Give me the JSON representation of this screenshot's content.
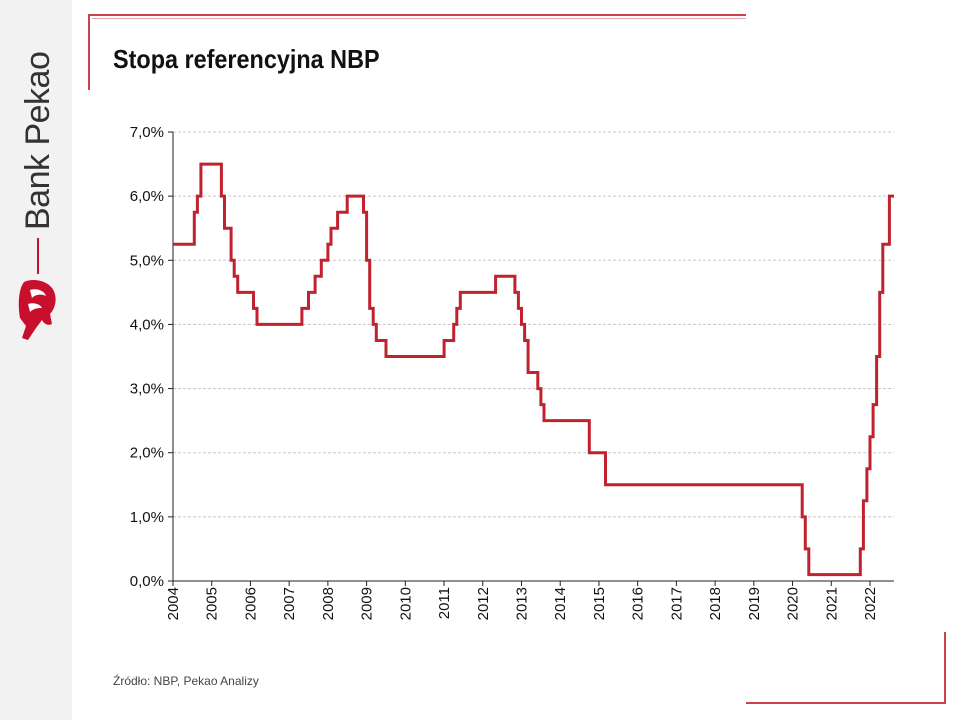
{
  "brand": {
    "name": "Bank Pekao",
    "accent": "#c8102e"
  },
  "title": "Stopa referencyjna NBP",
  "source": "Źródło: NBP, Pekao Analizy",
  "chart_data": {
    "type": "line",
    "step": true,
    "title": "Stopa referencyjna NBP",
    "xlabel": "",
    "ylabel": "",
    "xlim": [
      2004,
      2022.62
    ],
    "ylim": [
      0,
      7
    ],
    "grid": true,
    "legend": "none",
    "line_color": "#c0222e",
    "y_ticks": [
      0,
      1,
      2,
      3,
      4,
      5,
      6,
      7
    ],
    "y_tick_labels": [
      "0,0%",
      "1,0%",
      "2,0%",
      "3,0%",
      "4,0%",
      "5,0%",
      "6,0%",
      "7,0%"
    ],
    "x_ticks": [
      2004,
      2005,
      2006,
      2007,
      2008,
      2009,
      2010,
      2011,
      2012,
      2013,
      2014,
      2015,
      2016,
      2017,
      2018,
      2019,
      2020,
      2021,
      2022
    ],
    "x_tick_labels": [
      "2004",
      "2005",
      "2006",
      "2007",
      "2008",
      "2009",
      "2010",
      "2011",
      "2012",
      "2013",
      "2014",
      "2015",
      "2016",
      "2017",
      "2018",
      "2019",
      "2020",
      "2021",
      "2022"
    ],
    "series": [
      {
        "name": "Stopa referencyjna NBP",
        "x": [
          2004.0,
          2004.55,
          2004.63,
          2004.72,
          2005.25,
          2005.33,
          2005.5,
          2005.58,
          2005.67,
          2006.08,
          2006.17,
          2007.33,
          2007.5,
          2007.67,
          2007.83,
          2008.0,
          2008.08,
          2008.25,
          2008.5,
          2008.92,
          2009.0,
          2009.08,
          2009.17,
          2009.25,
          2009.5,
          2011.0,
          2011.25,
          2011.33,
          2011.42,
          2012.33,
          2012.83,
          2012.92,
          2013.0,
          2013.08,
          2013.17,
          2013.42,
          2013.5,
          2013.58,
          2014.75,
          2015.17,
          2020.25,
          2020.33,
          2020.42,
          2021.75,
          2021.83,
          2021.92,
          2022.0,
          2022.08,
          2022.17,
          2022.25,
          2022.33,
          2022.42,
          2022.5,
          2022.62
        ],
        "values": [
          5.25,
          5.75,
          6.0,
          6.5,
          6.0,
          5.5,
          5.0,
          4.75,
          4.5,
          4.25,
          4.0,
          4.25,
          4.5,
          4.75,
          5.0,
          5.25,
          5.5,
          5.75,
          6.0,
          5.75,
          5.0,
          4.25,
          4.0,
          3.75,
          3.5,
          3.75,
          4.0,
          4.25,
          4.5,
          4.75,
          4.5,
          4.25,
          4.0,
          3.75,
          3.25,
          3.0,
          2.75,
          2.5,
          2.0,
          1.5,
          1.0,
          0.5,
          0.1,
          0.5,
          1.25,
          1.75,
          2.25,
          2.75,
          3.5,
          4.5,
          5.25,
          5.25,
          6.0,
          6.0
        ]
      }
    ]
  }
}
